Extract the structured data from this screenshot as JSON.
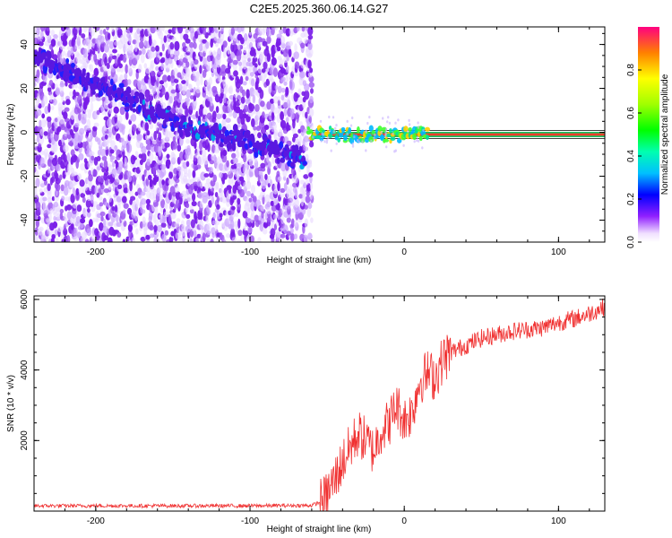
{
  "chart_data": [
    {
      "type": "heatmap",
      "title": "C2E5.2025.360.06.14.G27",
      "xlabel": "Height of straight line (km)",
      "ylabel": "Frequency (Hz)",
      "xlim": [
        -240,
        130
      ],
      "ylim": [
        -50,
        48
      ],
      "xticks": [
        -200,
        -100,
        0,
        100
      ],
      "xtick_labels": [
        "-200",
        "-100",
        "0",
        "100"
      ],
      "yticks": [
        -40,
        -20,
        0,
        20,
        40
      ],
      "ytick_labels": [
        "-40",
        "-20",
        "0",
        "20",
        "40"
      ],
      "colorbar": {
        "label": "Normalized spectral amplitude",
        "range": [
          0,
          1
        ],
        "ticks": [
          0.0,
          0.2,
          0.4,
          0.6,
          0.8
        ],
        "tick_labels": [
          "0.0",
          "0.2",
          "0.4",
          "0.6",
          "0.8"
        ]
      },
      "noise_region_x": [
        -240,
        -60
      ],
      "drift_track": {
        "x": [
          -240,
          -200,
          -150,
          -100,
          -65
        ],
        "freq": [
          35,
          22,
          5,
          -5,
          -12
        ]
      },
      "carrier_track": {
        "x": [
          -60,
          130
        ],
        "freq": [
          -1,
          -1
        ]
      }
    },
    {
      "type": "line",
      "title": "",
      "xlabel": "Height of straight line (km)",
      "ylabel": "SNR (10 * v/v)",
      "xlim": [
        -240,
        130
      ],
      "ylim": [
        0,
        6100
      ],
      "xticks": [
        -200,
        -100,
        0,
        100
      ],
      "xtick_labels": [
        "-200",
        "-100",
        "0",
        "100"
      ],
      "yticks": [
        2000,
        4000,
        6000
      ],
      "ytick_labels": [
        "2000",
        "4000",
        "6000"
      ],
      "series": [
        {
          "name": "SNR",
          "color": "#f03030",
          "x": [
            -240,
            -200,
            -150,
            -100,
            -60,
            -52,
            -45,
            -40,
            -35,
            -30,
            -25,
            -20,
            -15,
            -10,
            -5,
            0,
            5,
            10,
            15,
            20,
            25,
            30,
            40,
            50,
            60,
            70,
            80,
            90,
            100,
            110,
            120,
            130
          ],
          "y": [
            150,
            150,
            150,
            150,
            160,
            300,
            900,
            1400,
            1800,
            2200,
            2000,
            1700,
            2300,
            2500,
            3000,
            2600,
            2800,
            3700,
            3900,
            3800,
            4300,
            4500,
            4700,
            4900,
            5000,
            5100,
            5150,
            5200,
            5350,
            5450,
            5600,
            5800
          ]
        }
      ]
    }
  ]
}
